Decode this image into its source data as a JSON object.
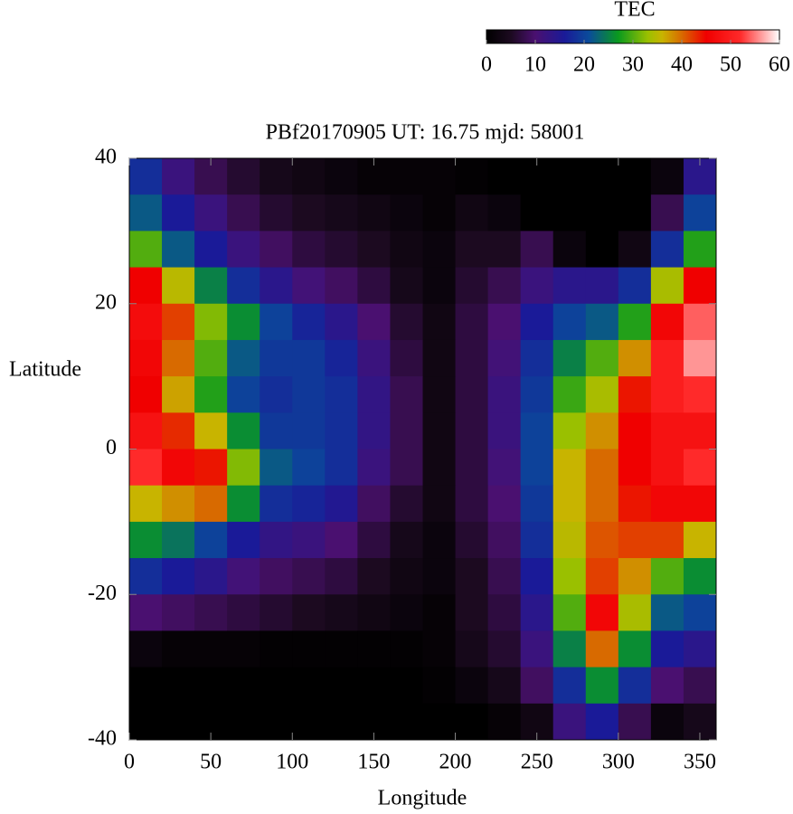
{
  "chart_data": {
    "type": "heatmap",
    "title": "PBf20170905  UT: 16.75  mjd: 58001",
    "x_label": "Longitude",
    "y_label": "Latitude",
    "colorbar_label": "TEC",
    "x": [
      10,
      30,
      50,
      70,
      90,
      110,
      130,
      150,
      170,
      190,
      210,
      230,
      250,
      270,
      290,
      310,
      330,
      350
    ],
    "y": [
      37.5,
      32.5,
      27.5,
      22.5,
      17.5,
      12.5,
      7.5,
      2.5,
      -2.5,
      -7.5,
      -12.5,
      -17.5,
      -22.5,
      -27.5,
      -32.5,
      -37.5
    ],
    "values": [
      [
        18,
        12,
        8,
        6,
        4,
        3,
        2,
        1,
        1,
        1,
        0.5,
        0,
        0,
        0,
        0,
        0,
        2,
        14
      ],
      [
        22,
        16,
        12,
        8,
        6,
        5,
        4,
        3,
        2,
        1,
        3,
        2,
        0,
        0,
        0,
        0,
        8,
        20
      ],
      [
        30,
        22,
        16,
        12,
        9,
        7,
        6,
        5,
        3,
        2,
        5,
        5,
        8,
        2,
        0,
        3,
        18,
        28
      ],
      [
        45,
        35,
        25,
        18,
        14,
        11,
        9,
        7,
        4,
        2,
        6,
        8,
        12,
        14,
        14,
        18,
        34,
        45
      ],
      [
        47,
        42,
        32,
        26,
        20,
        17,
        14,
        10,
        6,
        3,
        7,
        10,
        16,
        20,
        22,
        28,
        46,
        54
      ],
      [
        46,
        40,
        30,
        22,
        19,
        19,
        17,
        12,
        7,
        3,
        7,
        11,
        18,
        25,
        30,
        38,
        50,
        56
      ],
      [
        45,
        37,
        28,
        20,
        18,
        19,
        18,
        13,
        8,
        3,
        7,
        12,
        19,
        29,
        34,
        44,
        50,
        52
      ],
      [
        48,
        43,
        36,
        26,
        19,
        19,
        18,
        13,
        8,
        3,
        7,
        12,
        20,
        33,
        38,
        45,
        48,
        48
      ],
      [
        52,
        46,
        44,
        32,
        22,
        20,
        18,
        12,
        8,
        3,
        7,
        11,
        20,
        36,
        40,
        45,
        48,
        52
      ],
      [
        36,
        38,
        40,
        26,
        18,
        17,
        15,
        9,
        6,
        3,
        7,
        10,
        19,
        36,
        40,
        44,
        46,
        46
      ],
      [
        26,
        24,
        20,
        16,
        13,
        12,
        10,
        7,
        4,
        2,
        6,
        9,
        18,
        35,
        41,
        42,
        42,
        36
      ],
      [
        18,
        16,
        14,
        11,
        9,
        8,
        7,
        5,
        3,
        2,
        5,
        8,
        16,
        33,
        42,
        38,
        30,
        26
      ],
      [
        10,
        9,
        8,
        7,
        6,
        5,
        4,
        3,
        2,
        1,
        5,
        7,
        14,
        30,
        46,
        34,
        22,
        20
      ],
      [
        2,
        1,
        1,
        1,
        0.5,
        0.5,
        0.5,
        0.5,
        0.5,
        1,
        4,
        6,
        12,
        25,
        40,
        26,
        16,
        14
      ],
      [
        0,
        0,
        0,
        0,
        0,
        0,
        0,
        0,
        0,
        0.5,
        2,
        4,
        9,
        18,
        26,
        18,
        10,
        8
      ],
      [
        0,
        0,
        0,
        0,
        0,
        0,
        0,
        0,
        0,
        0,
        0,
        1,
        3,
        12,
        16,
        8,
        2,
        4
      ]
    ],
    "xlim": [
      0,
      360
    ],
    "ylim": [
      -40,
      40
    ],
    "xticks": [
      0,
      50,
      100,
      150,
      200,
      250,
      300,
      350
    ],
    "yticks": [
      -40,
      -20,
      0,
      20,
      40
    ],
    "clim": [
      0,
      60
    ],
    "cticks": [
      0,
      10,
      20,
      30,
      40,
      50,
      60
    ],
    "colorscale": [
      [
        0,
        "#000000"
      ],
      [
        5,
        "#1c0a20"
      ],
      [
        10,
        "#4a1070"
      ],
      [
        16,
        "#1a1a98"
      ],
      [
        21,
        "#0a4c9a"
      ],
      [
        27,
        "#0a9a1e"
      ],
      [
        33,
        "#9ac000"
      ],
      [
        36,
        "#c8b400"
      ],
      [
        40,
        "#d86a00"
      ],
      [
        45,
        "#f00000"
      ],
      [
        52,
        "#ff2a2a"
      ],
      [
        60,
        "#ffffff"
      ]
    ]
  }
}
